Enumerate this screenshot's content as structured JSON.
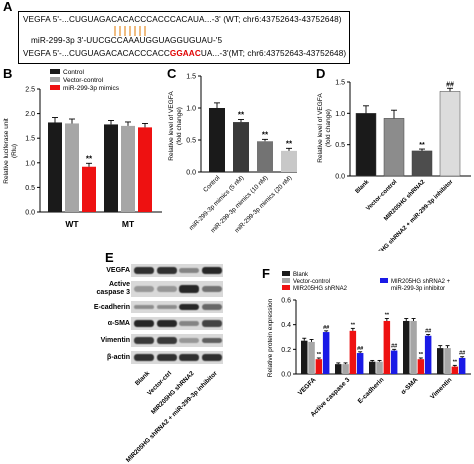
{
  "panels": {
    "a": "A",
    "b": "B",
    "c": "C",
    "d": "D",
    "e": "E",
    "f": "F"
  },
  "sequences": {
    "wt_prefix": "VEGFA 5'-...CUGUAGACACACCCACC",
    "wt_suffix": "CACAUA...-3' (WT; chr6:43752643-43752648)",
    "mir": "miR-299-3p 3'-UUCGCCAAAUGGUAGGUGUAU-'5",
    "mt_prefix": "VEGFA 5'-...CUGUAGACACACCCACC",
    "mt_mut": "GGAAC",
    "mt_suffix": "UA...-3'(MT; chr6:43752643-43752648)"
  },
  "colors": {
    "control": "#1a1a1a",
    "vector": "#a6a6a6",
    "mimics": "#ee1111",
    "blue": "#1a1ae6",
    "link": "#e07a00"
  },
  "chart_data": [
    {
      "panel": "B",
      "type": "bar",
      "ylabel": "Relative luciferase unit (Rlu)",
      "ylim": [
        0,
        2.5
      ],
      "yticks": [
        "0.0",
        "0.5",
        "1.0",
        "1.5",
        "2.0",
        "2.5"
      ],
      "categories": [
        "WT",
        "MT"
      ],
      "legend": [
        "Control",
        "Vector-control",
        "miR-299-3p mimics"
      ],
      "series": [
        {
          "name": "Control",
          "values": [
            1.82,
            1.78
          ],
          "errors": [
            0.1,
            0.08
          ]
        },
        {
          "name": "Vector-control",
          "values": [
            1.8,
            1.75
          ],
          "errors": [
            0.09,
            0.08
          ]
        },
        {
          "name": "miR-299-3p mimics",
          "values": [
            0.92,
            1.72
          ],
          "errors": [
            0.07,
            0.08
          ]
        }
      ],
      "annotations": [
        "**"
      ]
    },
    {
      "panel": "C",
      "type": "bar",
      "ylabel": "Relative level of VEGFA (fold change)",
      "ylim": [
        0,
        1.5
      ],
      "yticks": [
        "0.0",
        "0.5",
        "1.0",
        "1.5"
      ],
      "categories": [
        "Control",
        "miR-299-3p mimics (5 nM)",
        "miR-299-3p mimics (10 nM)",
        "miR-299-3p mimics (20 nM)"
      ],
      "values": [
        1.0,
        0.78,
        0.48,
        0.33
      ],
      "errors": [
        0.08,
        0.04,
        0.03,
        0.04
      ],
      "annotations": [
        "",
        "**",
        "**",
        "**"
      ]
    },
    {
      "panel": "D",
      "type": "bar",
      "ylabel": "Relative level of VEGFA (fold change)",
      "ylim": [
        0,
        1.5
      ],
      "yticks": [
        "0.0",
        "0.5",
        "1.0",
        "1.5"
      ],
      "categories": [
        "Blank",
        "Vector-control",
        "MIR205HG shRNA2",
        "MIR205HG shRNA2 + miR-299-3p inhibitor"
      ],
      "values": [
        1.0,
        0.92,
        0.4,
        1.35
      ],
      "errors": [
        0.12,
        0.13,
        0.03,
        0.05
      ],
      "annotations": [
        "",
        "",
        "**",
        "##"
      ]
    },
    {
      "panel": "F",
      "type": "bar",
      "ylabel": "Relative protein expression",
      "ylim": [
        0,
        0.6
      ],
      "yticks": [
        "0.0",
        "0.2",
        "0.4",
        "0.6"
      ],
      "categories": [
        "VEGFA",
        "Active caspase 3",
        "E-cadherin",
        "α-SMA",
        "Vimentin"
      ],
      "legend": [
        "Blank",
        "Vector-control",
        "MIR205HG shRNA2",
        "MIR205HG shRNA2 + miR-299-3p inhibitor"
      ],
      "series": [
        {
          "name": "Blank",
          "values": [
            0.27,
            0.08,
            0.1,
            0.43,
            0.21
          ],
          "errors": [
            0.02,
            0.01,
            0.01,
            0.02,
            0.02
          ]
        },
        {
          "name": "Vector-control",
          "values": [
            0.26,
            0.08,
            0.1,
            0.43,
            0.21
          ],
          "errors": [
            0.02,
            0.01,
            0.01,
            0.02,
            0.02
          ]
        },
        {
          "name": "MIR205HG shRNA2",
          "values": [
            0.12,
            0.35,
            0.43,
            0.12,
            0.06
          ],
          "errors": [
            0.01,
            0.02,
            0.02,
            0.01,
            0.01
          ]
        },
        {
          "name": "MIR205HG shRNA2 + miR-299-3p inhibitor",
          "values": [
            0.34,
            0.17,
            0.19,
            0.31,
            0.13
          ],
          "errors": [
            0.01,
            0.01,
            0.01,
            0.01,
            0.01
          ]
        }
      ],
      "annotations": [
        [
          "",
          "",
          "**",
          "##"
        ],
        [
          "",
          "",
          "**",
          "##"
        ],
        [
          "",
          "",
          "**",
          "##"
        ],
        [
          "",
          "",
          "**",
          "##"
        ],
        [
          "",
          "",
          "**",
          "##"
        ]
      ]
    }
  ],
  "western_blot": {
    "rows": [
      "VEGFA",
      "Active caspase 3",
      "E-cadherin",
      "α-SMA",
      "Vimentin",
      "β-actin"
    ],
    "row_display": [
      "VEGFA",
      "Active\ncaspase 3",
      "E-cadherin",
      "α-SMA",
      "Vimentin",
      "β-actin"
    ],
    "lanes": [
      "Blank",
      "Vector-ctrl",
      "MIR205HG shRNA2",
      "MIR205HG shRNA2 + miR-299-3p inhibitor"
    ],
    "band_intensity": [
      [
        0.9,
        0.9,
        0.45,
        0.95
      ],
      [
        0.35,
        0.35,
        0.95,
        0.55
      ],
      [
        0.4,
        0.4,
        0.95,
        0.6
      ],
      [
        0.95,
        0.95,
        0.45,
        0.8
      ],
      [
        0.85,
        0.85,
        0.35,
        0.65
      ],
      [
        0.9,
        0.9,
        0.9,
        0.9
      ]
    ]
  }
}
